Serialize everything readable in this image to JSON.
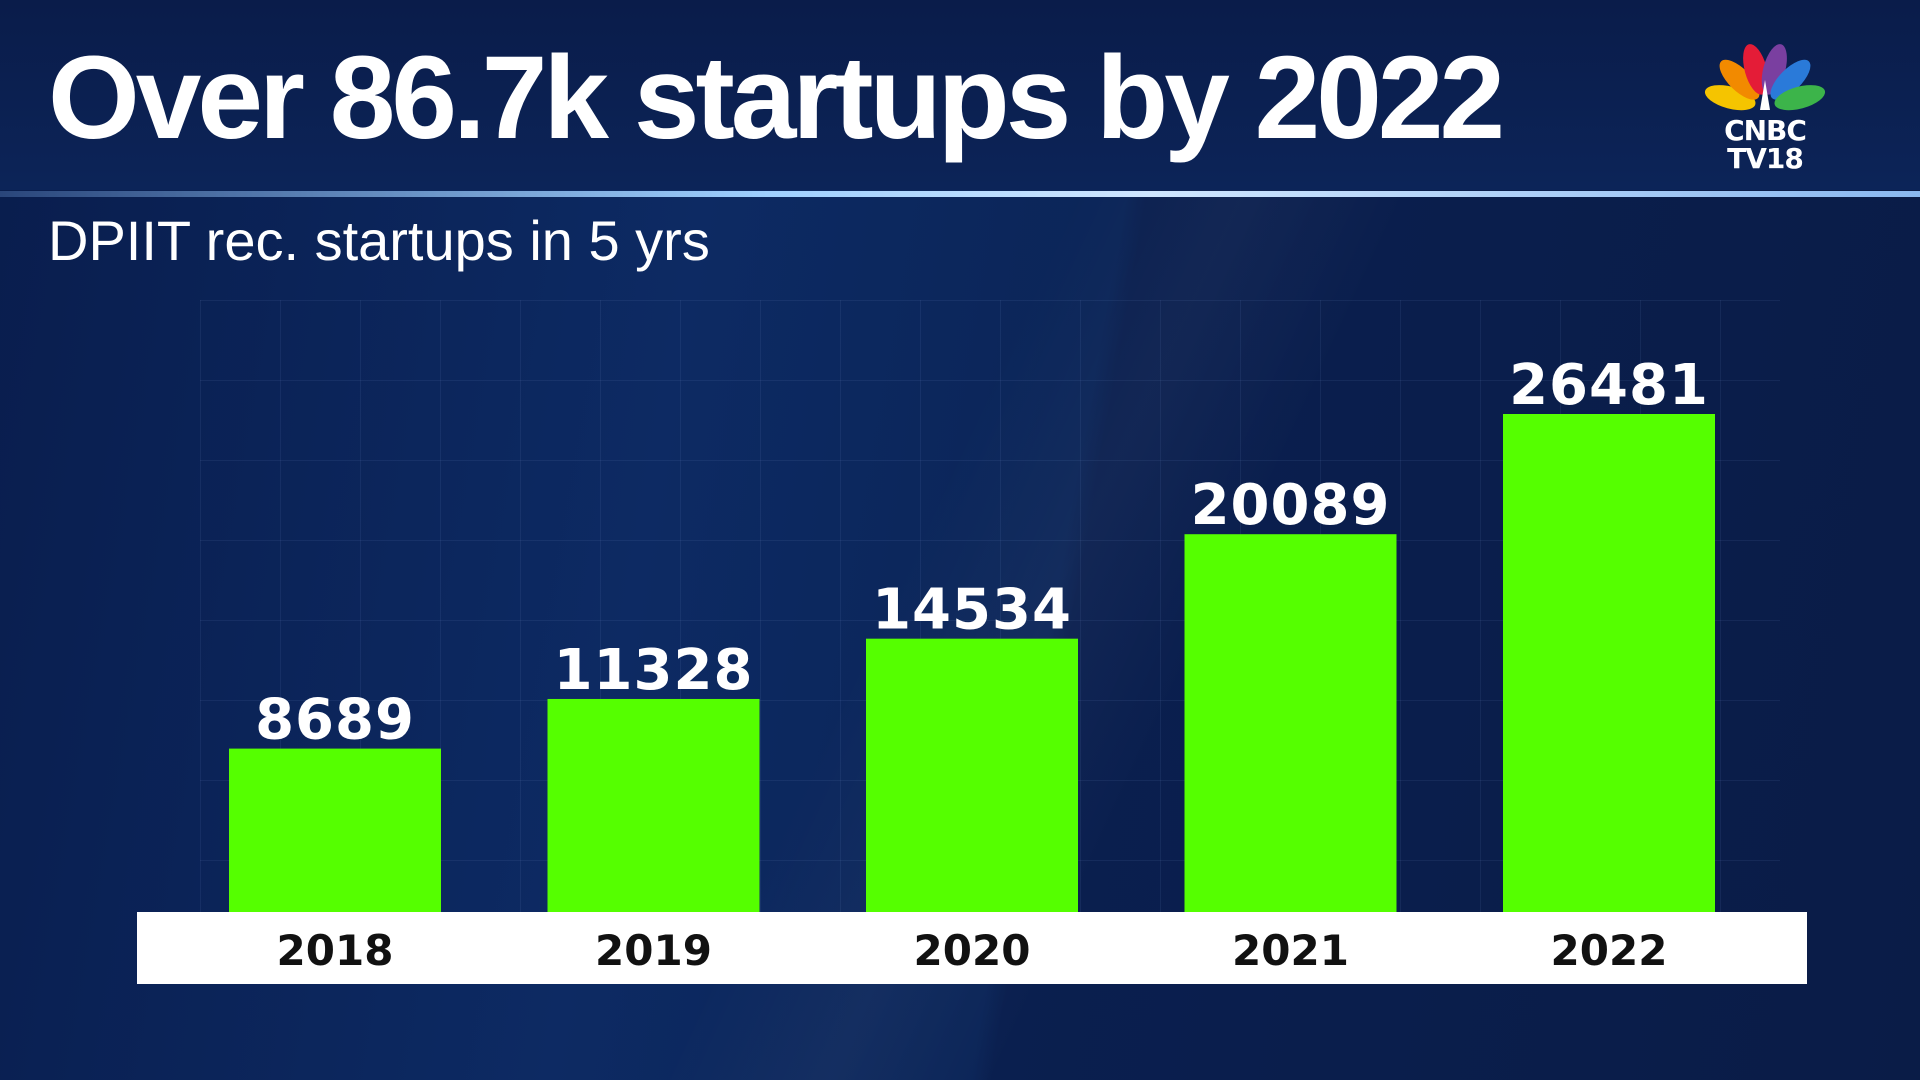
{
  "header": {
    "title": "Over 86.7k startups by 2022",
    "subtitle": "DPIIT rec. startups in 5 yrs"
  },
  "logo": {
    "line1": "CNBC",
    "line2": "TV18",
    "icon": "peacock-icon",
    "feather_colors": [
      "#f5c400",
      "#f28a00",
      "#e41c37",
      "#7a3fa0",
      "#2a7ad9",
      "#3cb44a"
    ]
  },
  "colors": {
    "bar": "#55ff00",
    "axis_band": "#ffffff",
    "label": "#ffffff",
    "category_text": "#111111"
  },
  "chart_data": {
    "type": "bar",
    "categories": [
      "2018",
      "2019",
      "2020",
      "2021",
      "2022"
    ],
    "values": [
      8689,
      11328,
      14534,
      20089,
      26481
    ],
    "title": "Over 86.7k startups by 2022",
    "subtitle": "DPIIT rec. startups in 5 yrs",
    "xlabel": "",
    "ylabel": "",
    "data_labels": true,
    "grid": false,
    "legend": "none"
  }
}
